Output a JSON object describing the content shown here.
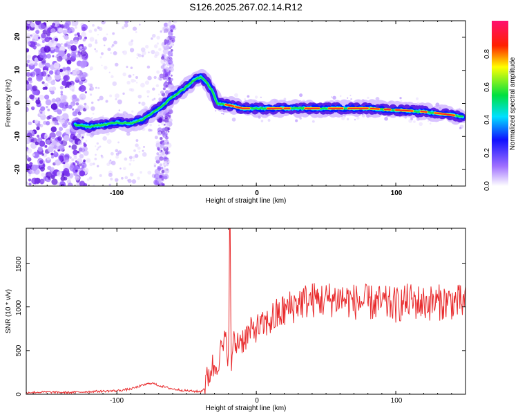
{
  "title": "S126.2025.267.02.14.R12",
  "colors": {
    "snr_line": "#e8292b",
    "track_core": "#ff2a1a",
    "scatter": "#6a2be0"
  },
  "chart_data": [
    {
      "type": "heatmap",
      "title": "S126.2025.267.02.14.R12",
      "xlabel": "Height of straight line (km)",
      "ylabel": "Frequency (Hz)",
      "xlim": [
        -165,
        150
      ],
      "ylim": [
        -25,
        25
      ],
      "x_ticks": [
        "-100",
        "0",
        "100"
      ],
      "y_ticks": [
        "-20",
        "-10",
        "0",
        "10",
        "20"
      ],
      "colorbar": {
        "label": "Normalized spectral amplitude",
        "range": [
          0.0,
          1.0
        ],
        "ticks": [
          "0.0",
          "0.2",
          "0.4",
          "0.6",
          "0.8"
        ]
      },
      "track": {
        "x": [
          -130,
          -120,
          -110,
          -100,
          -90,
          -82,
          -75,
          -68,
          -60,
          -50,
          -45,
          -40,
          -36,
          -32,
          -28,
          -20,
          -10,
          0,
          20,
          50,
          80,
          100,
          120,
          130,
          140,
          148
        ],
        "y": [
          -6.5,
          -7,
          -6.5,
          -5.8,
          -6,
          -5,
          -3,
          -1,
          2,
          5,
          7,
          8,
          6.5,
          4,
          0,
          -0.5,
          -1.5,
          -1.5,
          -1.5,
          -1.5,
          -1.5,
          -2,
          -2.5,
          -3,
          -3.5,
          -4
        ]
      }
    },
    {
      "type": "line",
      "xlabel": "Height of straight line (km)",
      "ylabel": "SNR (10 * v/v)",
      "xlim": [
        -165,
        150
      ],
      "ylim": [
        0,
        1900
      ],
      "x_ticks": [
        "-100",
        "0",
        "100"
      ],
      "y_ticks": [
        "0",
        "500",
        "1000",
        "1500"
      ],
      "series": [
        {
          "name": "SNR",
          "x": [
            -165,
            -150,
            -135,
            -120,
            -110,
            -100,
            -90,
            -80,
            -75,
            -70,
            -60,
            -50,
            -40,
            -37,
            -35,
            -32,
            -30,
            -27,
            -25,
            -22,
            -20,
            -19,
            -18,
            -17,
            -15,
            -12,
            -10,
            -5,
            0,
            5,
            10,
            15,
            20,
            25,
            30,
            40,
            50,
            60,
            70,
            80,
            90,
            100,
            110,
            120,
            130,
            140,
            150
          ],
          "y": [
            20,
            25,
            20,
            30,
            35,
            40,
            60,
            110,
            130,
            100,
            60,
            40,
            30,
            70,
            180,
            320,
            300,
            420,
            500,
            600,
            450,
            1900,
            200,
            600,
            550,
            650,
            620,
            700,
            760,
            780,
            850,
            900,
            950,
            1000,
            1050,
            1080,
            1080,
            1100,
            1060,
            1050,
            1040,
            1020,
            1070,
            1040,
            1050,
            1060,
            1040
          ]
        }
      ]
    }
  ]
}
